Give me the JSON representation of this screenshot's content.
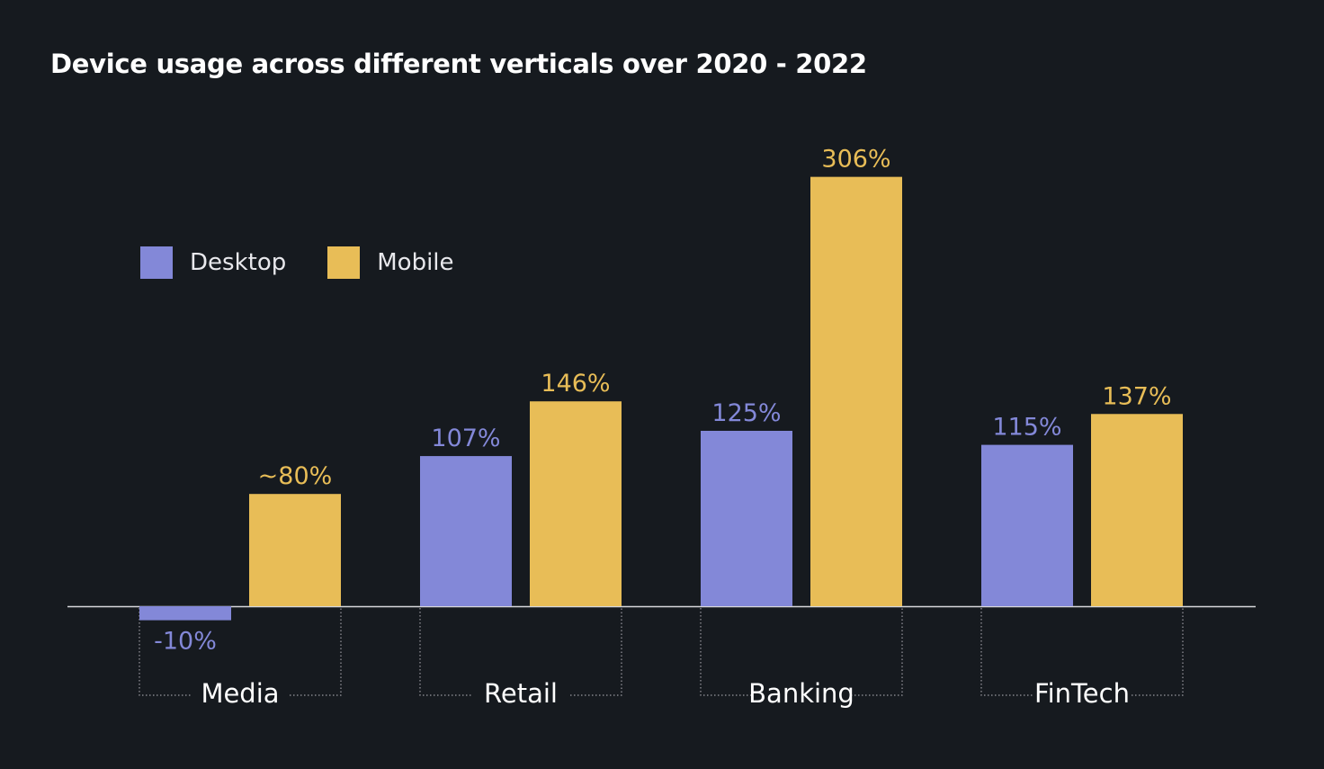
{
  "colors": {
    "background": "#161a1f",
    "desktop": "#8388d8",
    "mobile": "#e8bd57",
    "axis": "#d8d8dc",
    "bracket": "#9a9aa0",
    "text": "#ffffff"
  },
  "chart_data": {
    "type": "bar",
    "title": "Device usage across different verticals over 2020 - 2022",
    "categories": [
      "Media",
      "Retail",
      "Banking",
      "FinTech"
    ],
    "series": [
      {
        "name": "Desktop",
        "color": "#8388d8",
        "values": [
          -10,
          107,
          125,
          115
        ],
        "labels": [
          "-10%",
          "107%",
          "125%",
          "115%"
        ]
      },
      {
        "name": "Mobile",
        "color": "#e8bd57",
        "values": [
          80,
          146,
          306,
          137
        ],
        "labels": [
          "~80%",
          "146%",
          "306%",
          "137%"
        ]
      }
    ],
    "xlabel": "",
    "ylabel": "",
    "ylim": [
      -10,
      306
    ],
    "grid": false,
    "legend_position": "top-left"
  }
}
